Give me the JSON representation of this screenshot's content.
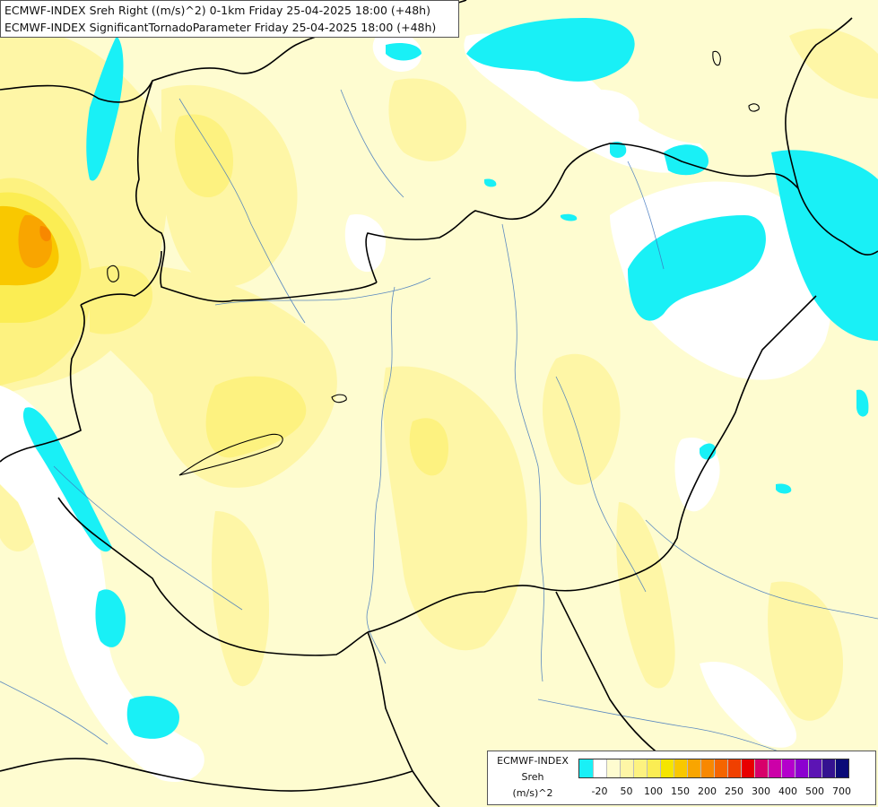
{
  "title": {
    "line1": "ECMWF-INDEX Sreh Right ((m/s)^2) 0-1km Friday 25-04-2025 18:00 (+48h)",
    "line2": "ECMWF-INDEX SignificantTornadoParameter Friday 25-04-2025 18:00 (+48h)"
  },
  "legend": {
    "line1": "ECMWF-INDEX",
    "line2": "Sreh",
    "line3": "(m/s)^2",
    "colors": [
      "#19f0f6",
      "#ffffff",
      "#fefcd0",
      "#fef6a6",
      "#fdf280",
      "#fbed53",
      "#f5e500",
      "#f9c800",
      "#f9a500",
      "#f88800",
      "#f56500",
      "#f04000",
      "#e80000",
      "#d8006a",
      "#cc00a8",
      "#b400cc",
      "#8c00d0",
      "#5c14b4",
      "#341290",
      "#0a0a78"
    ],
    "ticks": [
      {
        "label": "-20",
        "index": 1
      },
      {
        "label": "50",
        "index": 3
      },
      {
        "label": "100",
        "index": 5
      },
      {
        "label": "150",
        "index": 7
      },
      {
        "label": "200",
        "index": 9
      },
      {
        "label": "250",
        "index": 11
      },
      {
        "label": "300",
        "index": 13
      },
      {
        "label": "400",
        "index": 15
      },
      {
        "label": "500",
        "index": 17
      },
      {
        "label": "700",
        "index": 19
      }
    ]
  }
}
